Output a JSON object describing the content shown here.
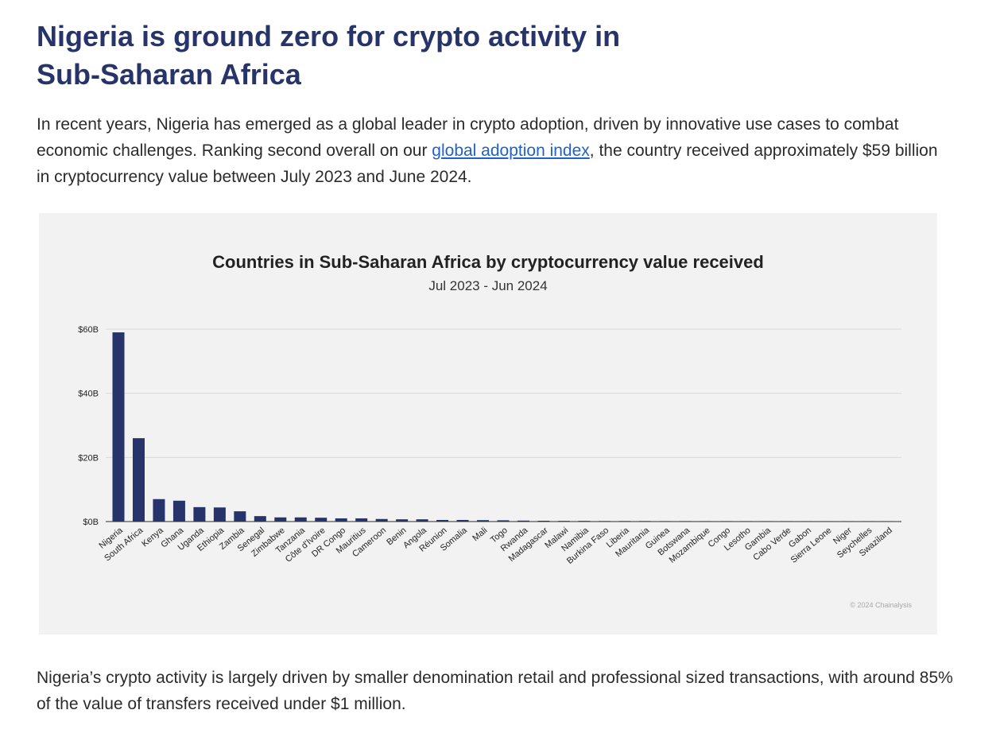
{
  "article": {
    "title": "Nigeria is ground zero for crypto activity in Sub-Saharan Africa",
    "intro_before_link": "In recent years, Nigeria has emerged as a global leader in crypto adoption, driven by innovative use cases to combat economic challenges. Ranking second overall on our ",
    "intro_link": "global adoption index",
    "intro_after_link": ", the country received approximately $59 billion in cryptocurrency value between July 2023 and June 2024.",
    "outro": "Nigeria’s crypto activity is largely driven by smaller denomination retail and professional sized transactions, with around 85% of the value of transfers received under $1 million."
  },
  "colors": {
    "bar": "#26346b",
    "grid": "#d9d9d9",
    "axis": "#555555",
    "card_bg": "#f2f2f2"
  },
  "chart_data": {
    "type": "bar",
    "title": "Countries in Sub-Saharan Africa by cryptocurrency value received",
    "subtitle": "Jul 2023 - Jun 2024",
    "xlabel": "",
    "ylabel": "",
    "unit": "billion USD",
    "ylim": [
      0,
      60
    ],
    "yticks": [
      0,
      20,
      40,
      60
    ],
    "ytick_labels": [
      "$0B",
      "$20B",
      "$40B",
      "$60B"
    ],
    "grid": true,
    "legend": "none",
    "copyright": "© 2024 Chainalysis",
    "categories": [
      "Nigeria",
      "South Africa",
      "Kenya",
      "Ghana",
      "Uganda",
      "Ethiopia",
      "Zambia",
      "Senegal",
      "Zimbabwe",
      "Tanzania",
      "Côte d'Ivoire",
      "DR Congo",
      "Mauritius",
      "Cameroon",
      "Benin",
      "Angola",
      "Réunion",
      "Somalia",
      "Mali",
      "Togo",
      "Rwanda",
      "Madagascar",
      "Malawi",
      "Namibia",
      "Burkina Faso",
      "Liberia",
      "Mauritania",
      "Guinea",
      "Botswana",
      "Mozambique",
      "Congo",
      "Lesotho",
      "Gambia",
      "Cabo Verde",
      "Gabon",
      "Sierra Leone",
      "Niger",
      "Seychelles",
      "Swaziland"
    ],
    "values": [
      59,
      26,
      7,
      6.5,
      4.5,
      4.4,
      3.2,
      1.7,
      1.3,
      1.3,
      1.2,
      1.0,
      1.0,
      0.8,
      0.7,
      0.7,
      0.5,
      0.5,
      0.45,
      0.4,
      0.3,
      0.25,
      0.2,
      0.2,
      0.15,
      0.15,
      0.15,
      0.12,
      0.12,
      0.1,
      0.1,
      0.08,
      0.08,
      0.07,
      0.06,
      0.05,
      0.05,
      0.05,
      0.04
    ]
  }
}
